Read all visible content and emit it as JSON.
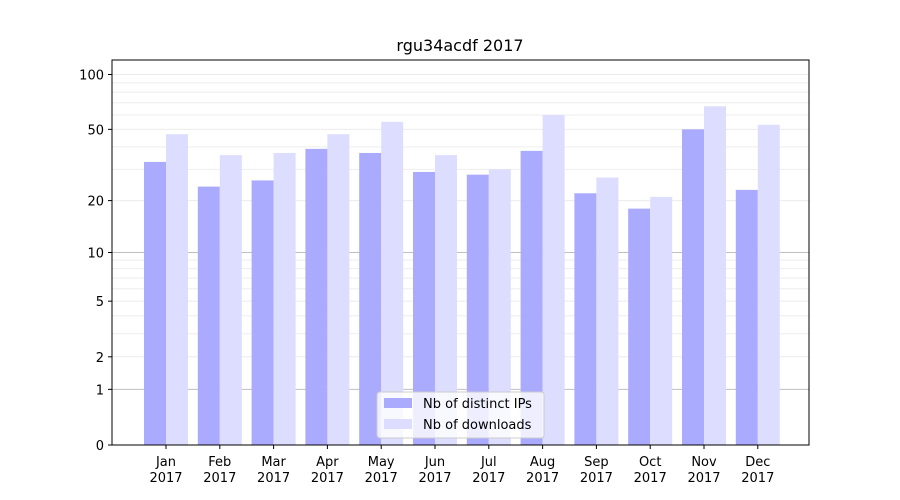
{
  "chart_data": {
    "type": "bar",
    "title": "rgu34acdf 2017",
    "xlabel": "",
    "ylabel": "",
    "yscale": "log1p",
    "ylim": [
      0,
      120
    ],
    "yticks": [
      0,
      1,
      2,
      5,
      10,
      20,
      50,
      100
    ],
    "ytick_labels": [
      "0",
      "1",
      "2",
      "5",
      "10",
      "20",
      "50",
      "100"
    ],
    "categories": [
      "Jan\n2017",
      "Feb\n2017",
      "Mar\n2017",
      "Apr\n2017",
      "May\n2017",
      "Jun\n2017",
      "Jul\n2017",
      "Aug\n2017",
      "Sep\n2017",
      "Oct\n2017",
      "Nov\n2017",
      "Dec\n2017"
    ],
    "category_lines": [
      [
        "Jan",
        "2017"
      ],
      [
        "Feb",
        "2017"
      ],
      [
        "Mar",
        "2017"
      ],
      [
        "Apr",
        "2017"
      ],
      [
        "May",
        "2017"
      ],
      [
        "Jun",
        "2017"
      ],
      [
        "Jul",
        "2017"
      ],
      [
        "Aug",
        "2017"
      ],
      [
        "Sep",
        "2017"
      ],
      [
        "Oct",
        "2017"
      ],
      [
        "Nov",
        "2017"
      ],
      [
        "Dec",
        "2017"
      ]
    ],
    "series": [
      {
        "name": "Nb of distinct IPs",
        "color": "#aaaaff",
        "values": [
          33,
          24,
          26,
          39,
          37,
          29,
          28,
          38,
          22,
          18,
          50,
          23
        ]
      },
      {
        "name": "Nb of downloads",
        "color": "#ddddff",
        "values": [
          47,
          36,
          37,
          47,
          55,
          36,
          30,
          60,
          27,
          21,
          67,
          53
        ]
      }
    ],
    "grid": "y",
    "legend": "lower-center"
  }
}
